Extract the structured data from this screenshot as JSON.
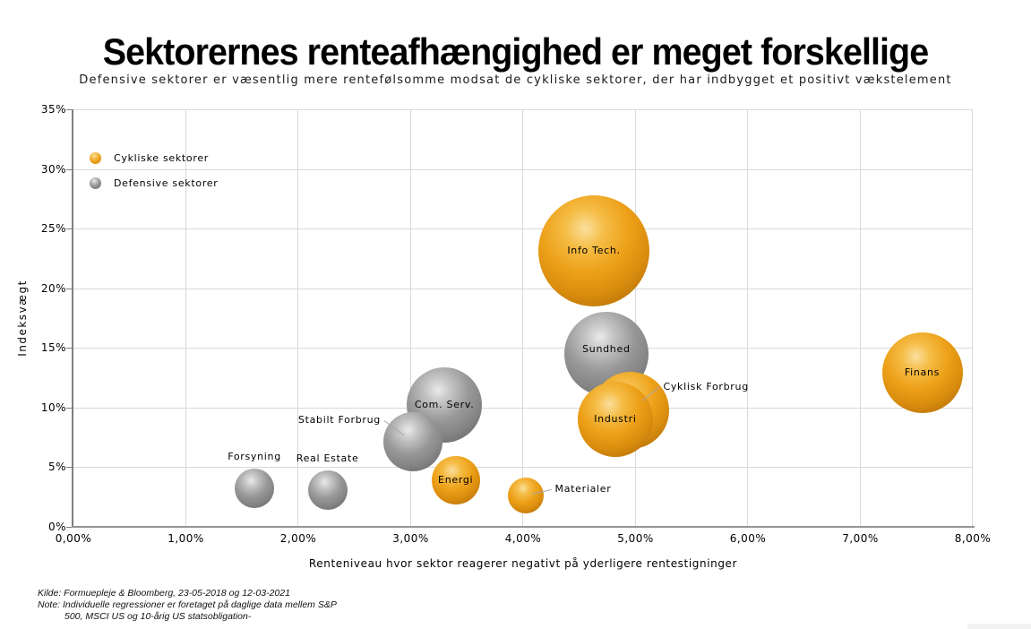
{
  "page": {
    "title": "Sektorernes renteafhængighed er meget forskellige",
    "subtitle": "Defensive sektorer er væsentlig mere rentefølsomme modsat de cykliske sektorer, der har indbygget et positivt vækstelement"
  },
  "chart_data": {
    "type": "scatter",
    "subtype": "bubble",
    "title": "Sektorernes renteafhængighed er meget forskellige",
    "xlabel": "Renteniveau hvor sektor reagerer negativt på yderligere rentestigninger",
    "ylabel": "Indeksvægt",
    "xlim": [
      0,
      8
    ],
    "ylim": [
      0,
      35
    ],
    "x_ticks": [
      "0,00%",
      "1,00%",
      "2,00%",
      "3,00%",
      "4,00%",
      "5,00%",
      "6,00%",
      "7,00%",
      "8,00%"
    ],
    "y_ticks": [
      "0%",
      "5%",
      "10%",
      "15%",
      "20%",
      "25%",
      "30%",
      "35%"
    ],
    "grid": true,
    "legend_position": "top-left-inside",
    "colors": {
      "cyclical": "#EC9F17",
      "defensive": "#8E8E8E",
      "grid": "#D9D9D9",
      "axis": "#7F7F7F",
      "leader": "#A8A8A8"
    },
    "series": [
      {
        "name": "Cykliske sektorer",
        "color": "#EC9F17",
        "points": [
          {
            "label": "Info Tech.",
            "x": 4.63,
            "y": 23.1,
            "r": 62,
            "z": 1,
            "label_pos": "center"
          },
          {
            "label": "Cyklisk Forbrug",
            "x": 4.96,
            "y": 9.8,
            "r": 43,
            "z": 3,
            "label_pos": "right",
            "lx": 36,
            "ly": -26
          },
          {
            "label": "Industri",
            "x": 4.82,
            "y": 9.0,
            "r": 42,
            "z": 4,
            "label_pos": "center"
          },
          {
            "label": "Energi",
            "x": 3.4,
            "y": 3.9,
            "r": 27,
            "z": 7,
            "label_pos": "center"
          },
          {
            "label": "Materialer",
            "x": 4.02,
            "y": 2.6,
            "r": 20,
            "z": 10,
            "label_pos": "right",
            "lx": 33,
            "ly": -7
          },
          {
            "label": "Finans",
            "x": 7.55,
            "y": 12.9,
            "r": 45,
            "z": 11,
            "label_pos": "center"
          }
        ]
      },
      {
        "name": "Defensive sektorer",
        "color": "#8E8E8E",
        "points": [
          {
            "label": "Sundhed",
            "x": 4.74,
            "y": 14.5,
            "r": 47,
            "z": 2,
            "label_pos": "center",
            "ly": -5
          },
          {
            "label": "Com. Serv.",
            "x": 3.3,
            "y": 10.2,
            "r": 42,
            "z": 5,
            "label_pos": "center"
          },
          {
            "label": "Stabilt Forbrug",
            "x": 3.02,
            "y": 7.1,
            "r": 33,
            "z": 6,
            "label_pos": "left",
            "lx": -36,
            "ly": -24
          },
          {
            "label": "Forsyning",
            "x": 1.61,
            "y": 3.2,
            "r": 22,
            "z": 8,
            "label_pos": "above"
          },
          {
            "label": "Real Estate",
            "x": 2.26,
            "y": 3.1,
            "r": 22,
            "z": 9,
            "label_pos": "above"
          }
        ]
      }
    ]
  },
  "footer": {
    "kilde": "Kilde: Formuepleje & Bloomberg, 23-05-2018 og 12-03-2021",
    "note_line1": "Note: Individuelle regressioner er foretaget på daglige data mellem S&P",
    "note_line2": "500, MSCI US og 10-årig US statsobligation-"
  }
}
